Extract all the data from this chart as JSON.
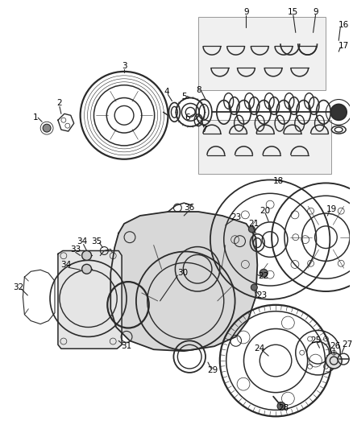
{
  "bg_color": "#ffffff",
  "line_color": "#2a2a2a",
  "label_color": "#000000",
  "lw": 0.8,
  "fig_w": 4.38,
  "fig_h": 5.33,
  "dpi": 100
}
